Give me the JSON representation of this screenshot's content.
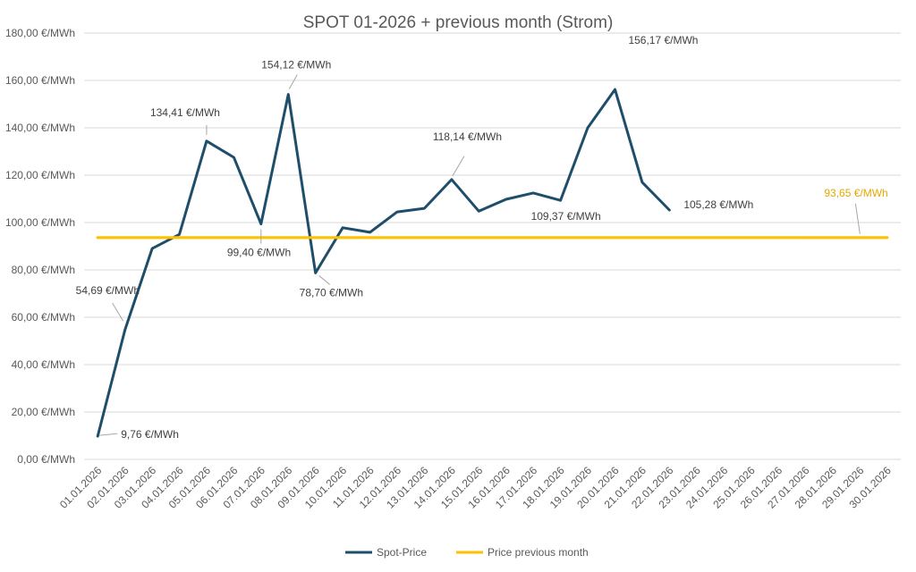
{
  "chart_data": {
    "type": "line",
    "title": "SPOT 01-2026 + previous month (Strom)",
    "ylim": [
      0,
      180
    ],
    "yticks": [
      "0,00 €/MWh",
      "20,00 €/MWh",
      "40,00 €/MWh",
      "60,00 €/MWh",
      "80,00 €/MWh",
      "100,00 €/MWh",
      "120,00 €/MWh",
      "140,00 €/MWh",
      "160,00 €/MWh",
      "180,00 €/MWh"
    ],
    "categories": [
      "01.01.2026",
      "02.01.2026",
      "03.01.2026",
      "04.01.2026",
      "05.01.2026",
      "06.01.2026",
      "07.01.2026",
      "08.01.2026",
      "09.01.2026",
      "10.01.2026",
      "11.01.2026",
      "12.01.2026",
      "13.01.2026",
      "14.01.2026",
      "15.01.2026",
      "16.01.2026",
      "17.01.2026",
      "18.01.2026",
      "19.01.2026",
      "20.01.2026",
      "21.01.2026",
      "22.01.2026",
      "23.01.2026",
      "24.01.2026",
      "25.01.2026",
      "26.01.2026",
      "27.01.2026",
      "28.01.2026",
      "29.01.2026",
      "30.01.2026"
    ],
    "grid": true,
    "legend_position": "bottom",
    "series": [
      {
        "name": "Spot-Price",
        "color": "#1f4e6b",
        "values": [
          9.76,
          54.69,
          89,
          95,
          134.41,
          127.5,
          99.4,
          154.12,
          78.7,
          97.8,
          95.9,
          104.5,
          106,
          118.14,
          104.8,
          109.8,
          112.5,
          109.37,
          140,
          156.17,
          117,
          105.28,
          null,
          null,
          null,
          null,
          null,
          null,
          null,
          null
        ]
      },
      {
        "name": "Price previous month",
        "color": "#ffc000",
        "values": [
          93.65,
          93.65,
          93.65,
          93.65,
          93.65,
          93.65,
          93.65,
          93.65,
          93.65,
          93.65,
          93.65,
          93.65,
          93.65,
          93.65,
          93.65,
          93.65,
          93.65,
          93.65,
          93.65,
          93.65,
          93.65,
          93.65,
          93.65,
          93.65,
          93.65,
          93.65,
          93.65,
          93.65,
          93.65,
          93.65
        ]
      }
    ],
    "data_labels": [
      {
        "series": 0,
        "index": 0,
        "text": "9,76 €/MWh"
      },
      {
        "series": 0,
        "index": 1,
        "text": "54,69 €/MWh"
      },
      {
        "series": 0,
        "index": 4,
        "text": "134,41 €/MWh"
      },
      {
        "series": 0,
        "index": 6,
        "text": "99,40 €/MWh"
      },
      {
        "series": 0,
        "index": 7,
        "text": "154,12 €/MWh"
      },
      {
        "series": 0,
        "index": 8,
        "text": "78,70 €/MWh"
      },
      {
        "series": 0,
        "index": 13,
        "text": "118,14 €/MWh"
      },
      {
        "series": 0,
        "index": 17,
        "text": "109,37 €/MWh"
      },
      {
        "series": 0,
        "index": 19,
        "text": "156,17 €/MWh"
      },
      {
        "series": 0,
        "index": 21,
        "text": "105,28 €/MWh"
      },
      {
        "series": 1,
        "index": 28,
        "text": "93,65 €/MWh"
      }
    ]
  }
}
